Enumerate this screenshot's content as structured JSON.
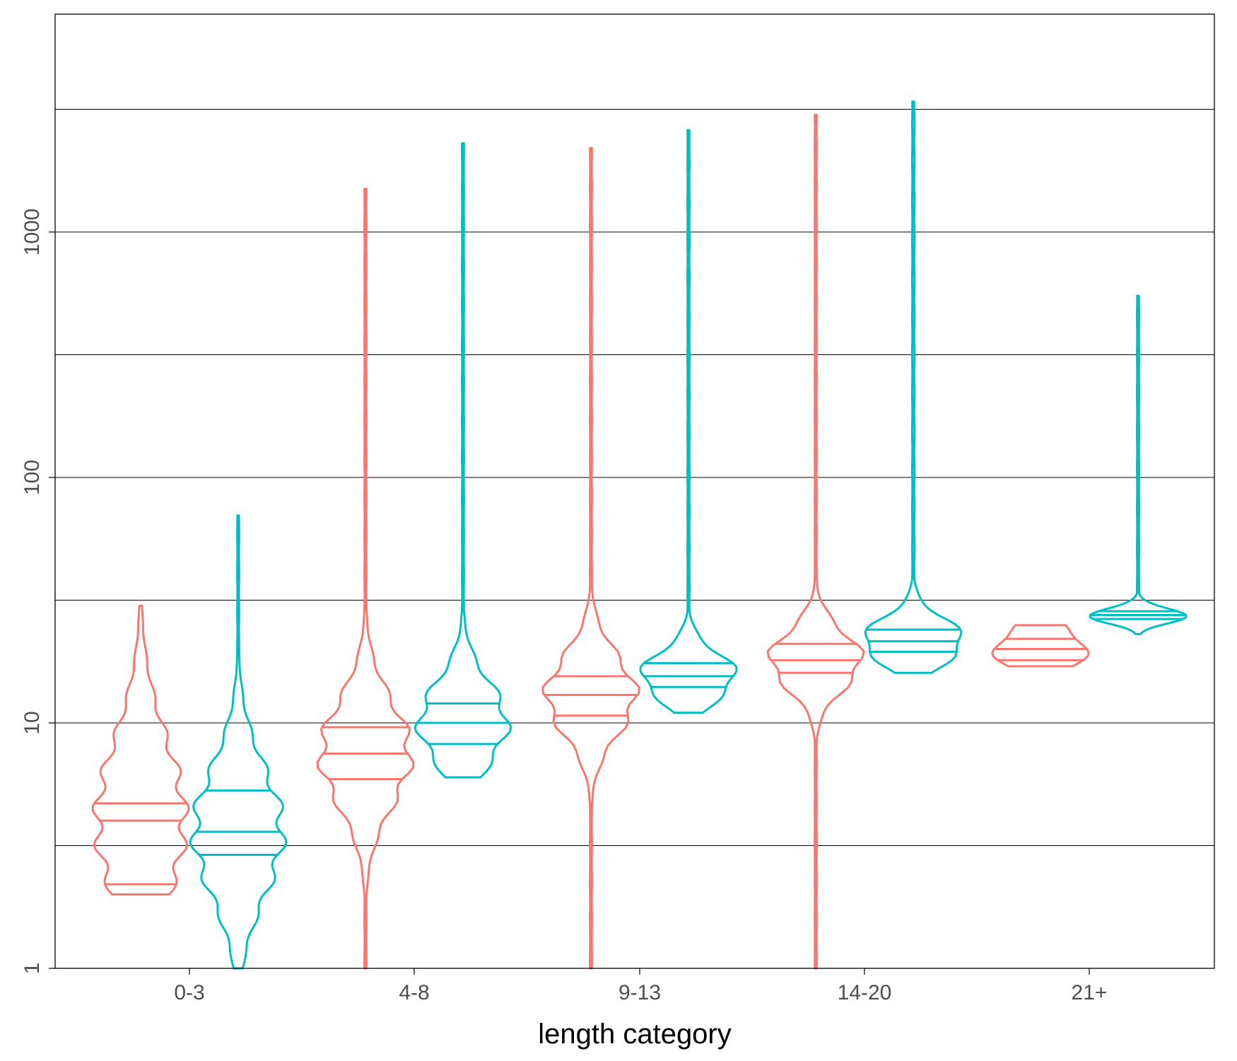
{
  "chart_data": {
    "type": "violin",
    "title": "",
    "xlabel": "length category",
    "ylabel": "",
    "y_scale": "log10",
    "ylim": [
      1,
      10000
    ],
    "yticks": [
      1,
      10,
      100,
      1000
    ],
    "ytick_labels": [
      "1",
      "10",
      "100",
      "1000"
    ],
    "categories": [
      "0-3",
      "4-8",
      "9-13",
      "14-20",
      "21+"
    ],
    "grid": "horizontal major and minor",
    "legend": "none",
    "colors": {
      "group_a": "#F8766D",
      "group_b": "#00BFC4"
    },
    "violins": [
      {
        "category": "0-3",
        "group": "a",
        "min": 2,
        "max": 30,
        "q25": 2.2,
        "median": 4,
        "q75": 4.7
      },
      {
        "category": "0-3",
        "group": "b",
        "min": 1,
        "max": 70,
        "q25": 2.9,
        "median": 3.6,
        "q75": 5.3
      },
      {
        "category": "4-8",
        "group": "a",
        "min": 1,
        "max": 1500,
        "q25": 5.9,
        "median": 7.5,
        "q75": 9.6
      },
      {
        "category": "4-8",
        "group": "b",
        "min": 6,
        "max": 2300,
        "q25": 8.2,
        "median": 10,
        "q75": 12
      },
      {
        "category": "9-13",
        "group": "a",
        "min": 1,
        "max": 2200,
        "q25": 10.7,
        "median": 13,
        "q75": 15.5
      },
      {
        "category": "9-13",
        "group": "b",
        "min": 11,
        "max": 2600,
        "q25": 14,
        "median": 15.5,
        "q75": 17.5
      },
      {
        "category": "14-20",
        "group": "a",
        "min": 1,
        "max": 3000,
        "q25": 16,
        "median": 18,
        "q75": 21
      },
      {
        "category": "14-20",
        "group": "b",
        "min": 16,
        "max": 3400,
        "q25": 19.5,
        "median": 21.5,
        "q75": 24
      },
      {
        "category": "21+",
        "group": "a",
        "min": 17,
        "max": 25,
        "q25": 18,
        "median": 20,
        "q75": 22
      },
      {
        "category": "21+",
        "group": "b",
        "min": 23,
        "max": 550,
        "q25": 26.5,
        "median": 27.5,
        "q75": 28.5
      }
    ]
  }
}
